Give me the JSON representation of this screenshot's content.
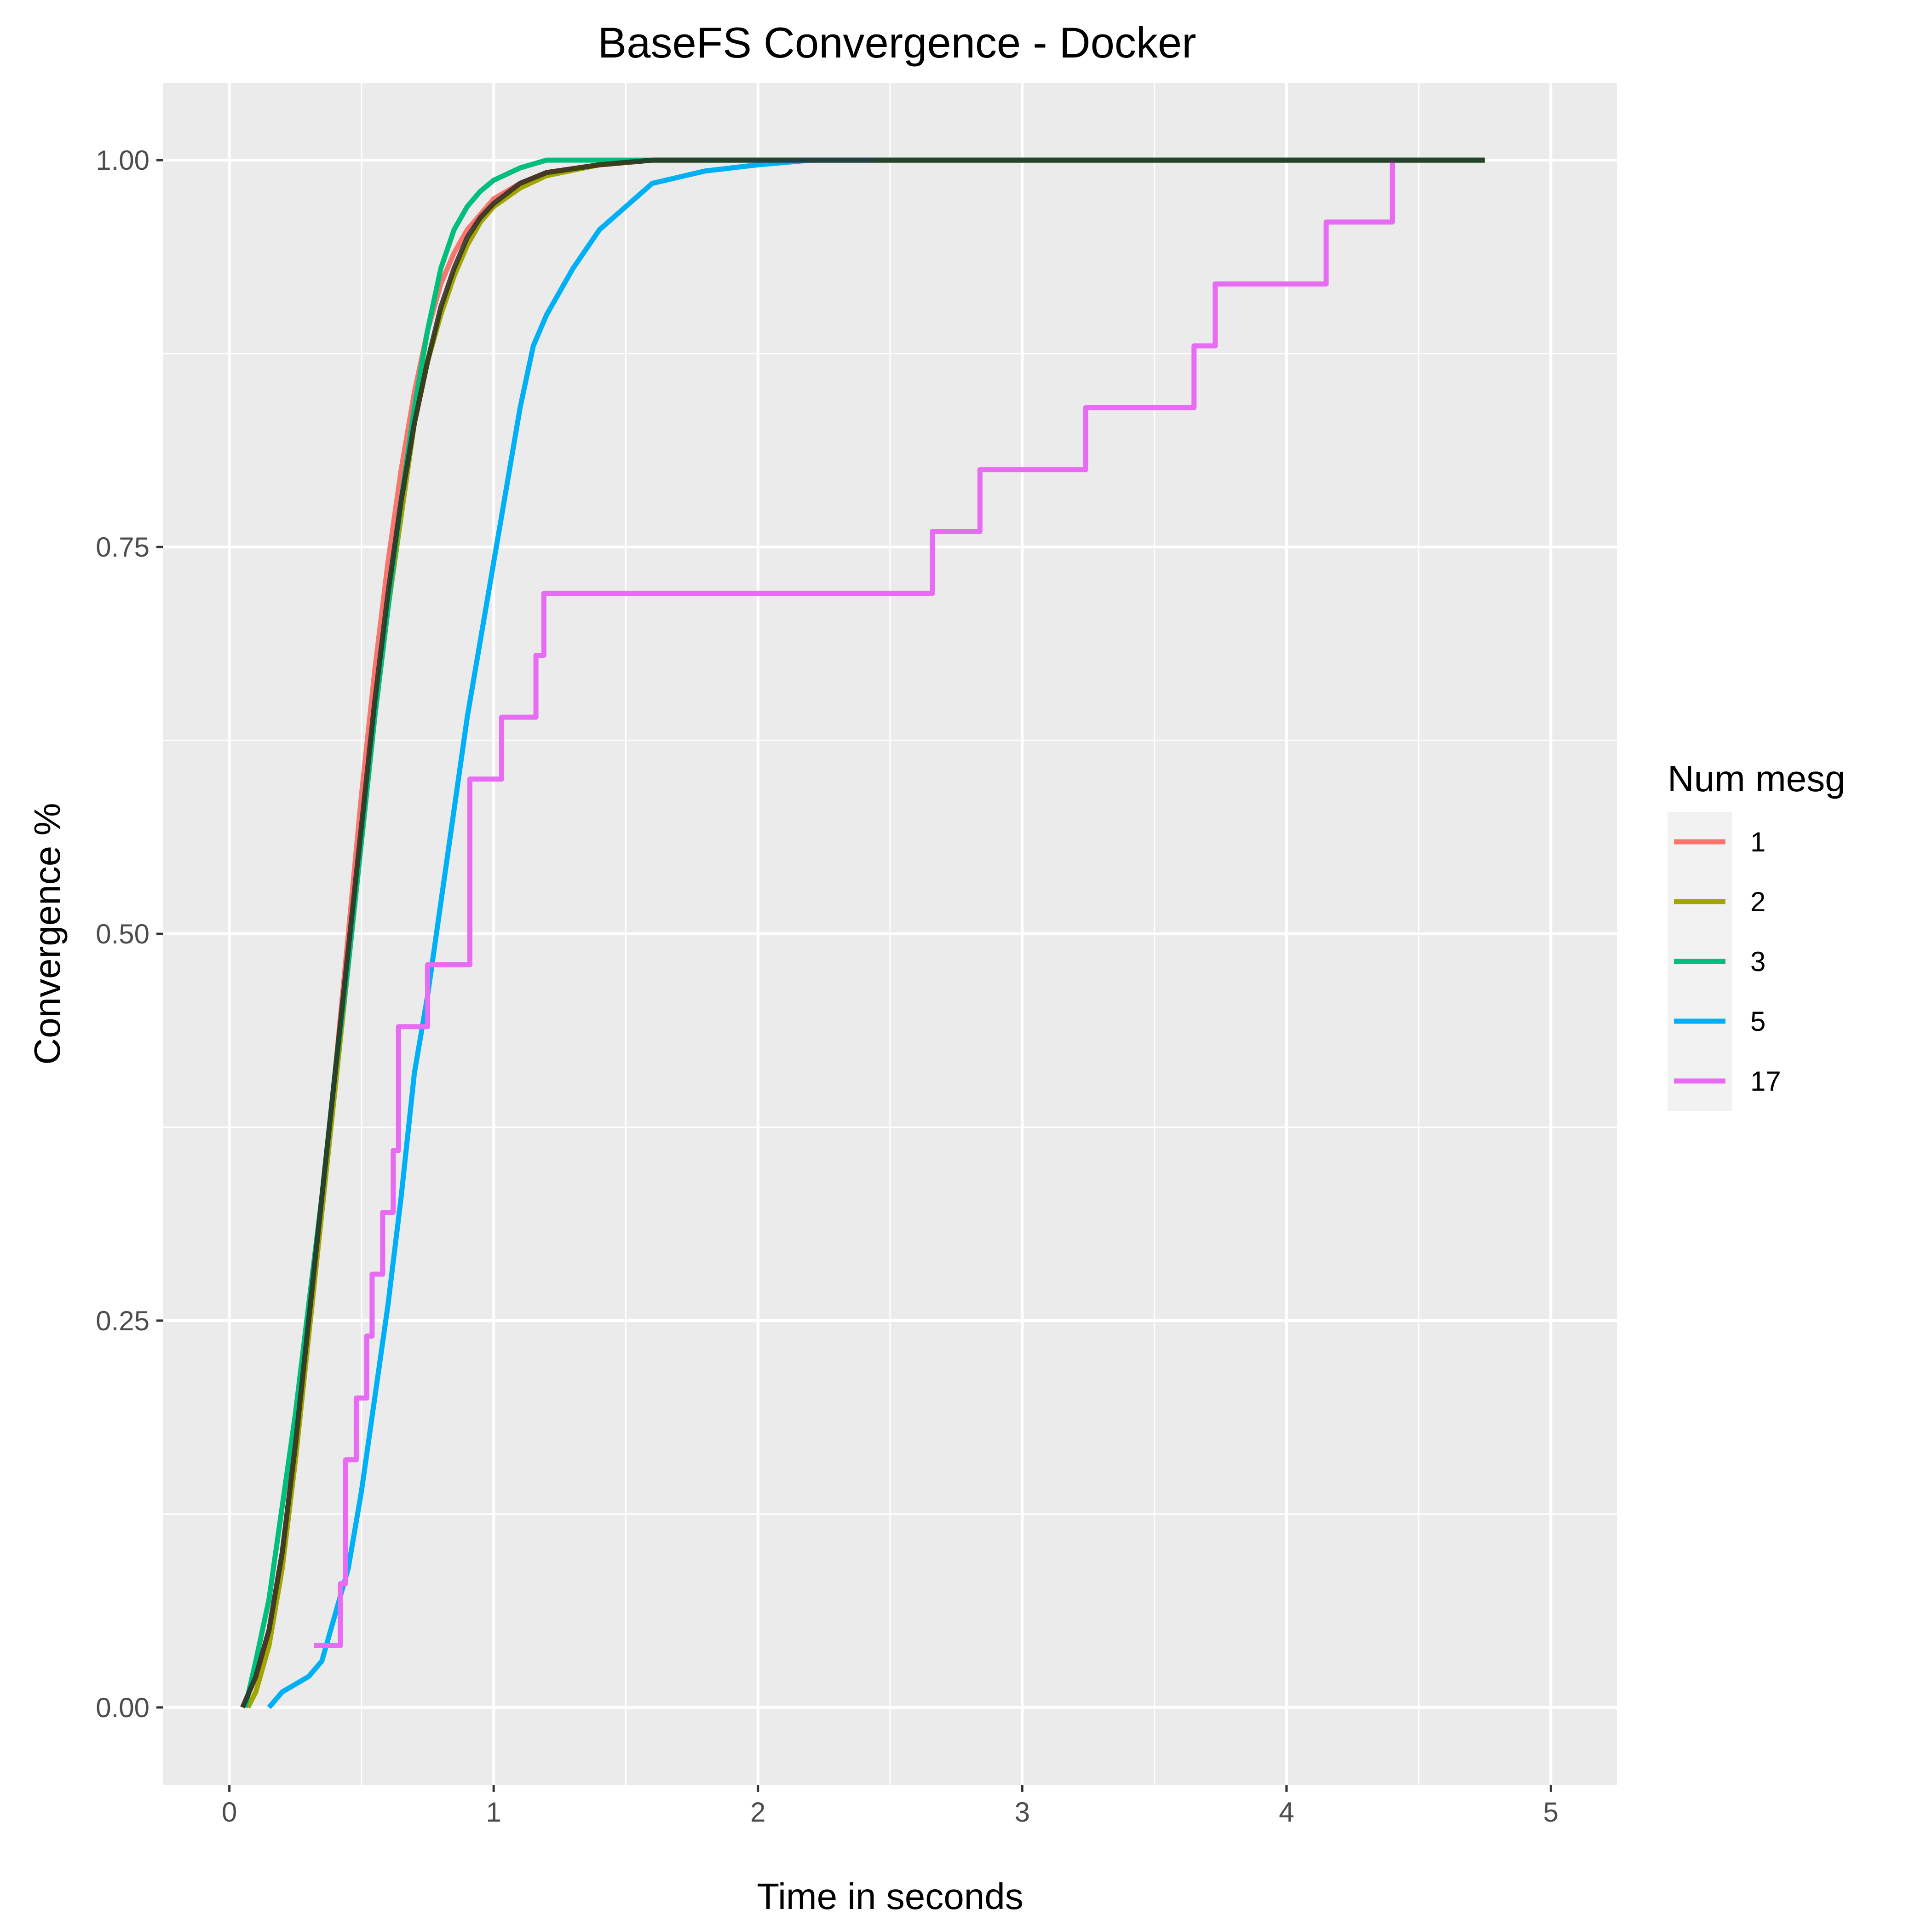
{
  "chart_data": {
    "type": "line",
    "title": "BaseFS Convergence - Docker",
    "xlabel": "Time in seconds",
    "ylabel": "Convergence %",
    "xlim": [
      -0.25,
      5.25
    ],
    "ylim": [
      -0.05,
      1.05
    ],
    "x_ticks": [
      0,
      1,
      2,
      3,
      4,
      5
    ],
    "x_tick_labels": [
      "0",
      "1",
      "2",
      "3",
      "4",
      "5"
    ],
    "y_ticks": [
      0,
      0.25,
      0.5,
      0.75,
      1.0
    ],
    "y_tick_labels": [
      "0.00",
      "0.25",
      "0.50",
      "0.75",
      "1.00"
    ],
    "grid": true,
    "legend": {
      "title": "Num mesg",
      "position": "right",
      "entries": [
        {
          "label": "1",
          "color": "#F8766D"
        },
        {
          "label": "2",
          "color": "#A3A500"
        },
        {
          "label": "3",
          "color": "#00BF7D"
        },
        {
          "label": "5",
          "color": "#00B0F6"
        },
        {
          "label": "17",
          "color": "#E76BF3"
        }
      ]
    },
    "series": [
      {
        "name": "1",
        "color": "#F8766D",
        "step": false,
        "x": [
          0.05,
          0.1,
          0.15,
          0.2,
          0.25,
          0.3,
          0.35,
          0.4,
          0.45,
          0.5,
          0.55,
          0.6,
          0.65,
          0.7,
          0.75,
          0.8,
          0.85,
          0.9,
          0.95,
          1.0,
          1.1,
          1.2,
          1.4,
          1.6,
          2.0,
          3.0,
          4.0,
          4.75
        ],
        "y": [
          0.0,
          0.02,
          0.05,
          0.1,
          0.17,
          0.25,
          0.33,
          0.41,
          0.5,
          0.59,
          0.67,
          0.74,
          0.8,
          0.85,
          0.89,
          0.92,
          0.94,
          0.955,
          0.965,
          0.975,
          0.985,
          0.992,
          0.997,
          1.0,
          1.0,
          1.0,
          1.0,
          1.0
        ]
      },
      {
        "name": "2",
        "color": "#A3A500",
        "step": false,
        "x": [
          0.07,
          0.1,
          0.15,
          0.2,
          0.25,
          0.3,
          0.35,
          0.4,
          0.45,
          0.5,
          0.55,
          0.6,
          0.65,
          0.7,
          0.75,
          0.8,
          0.85,
          0.9,
          0.95,
          1.0,
          1.1,
          1.2,
          1.4,
          1.6,
          2.0,
          3.0,
          4.0,
          4.75
        ],
        "y": [
          0.0,
          0.01,
          0.04,
          0.09,
          0.16,
          0.24,
          0.32,
          0.4,
          0.48,
          0.56,
          0.64,
          0.71,
          0.77,
          0.83,
          0.87,
          0.9,
          0.925,
          0.945,
          0.96,
          0.97,
          0.982,
          0.99,
          0.997,
          1.0,
          1.0,
          1.0,
          1.0,
          1.0
        ]
      },
      {
        "name": "3",
        "color": "#00BF7D",
        "step": false,
        "x": [
          0.06,
          0.1,
          0.15,
          0.2,
          0.25,
          0.3,
          0.35,
          0.4,
          0.45,
          0.5,
          0.55,
          0.6,
          0.65,
          0.7,
          0.75,
          0.8,
          0.85,
          0.9,
          0.95,
          1.0,
          1.1,
          1.2,
          1.3,
          1.5,
          2.0,
          3.0,
          4.0,
          4.75
        ],
        "y": [
          0.0,
          0.03,
          0.07,
          0.13,
          0.19,
          0.26,
          0.33,
          0.41,
          0.48,
          0.56,
          0.64,
          0.71,
          0.78,
          0.84,
          0.89,
          0.93,
          0.955,
          0.97,
          0.98,
          0.987,
          0.995,
          1.0,
          1.0,
          1.0,
          1.0,
          1.0,
          1.0,
          1.0
        ]
      },
      {
        "name": "5",
        "color": "#00B0F6",
        "step": false,
        "x": [
          0.15,
          0.2,
          0.25,
          0.3,
          0.35,
          0.4,
          0.45,
          0.5,
          0.55,
          0.6,
          0.65,
          0.7,
          0.75,
          0.8,
          0.85,
          0.9,
          0.95,
          1.0,
          1.05,
          1.1,
          1.15,
          1.2,
          1.3,
          1.4,
          1.5,
          1.6,
          1.8,
          2.0,
          2.2,
          2.45
        ],
        "y": [
          0.0,
          0.01,
          0.015,
          0.02,
          0.03,
          0.06,
          0.09,
          0.14,
          0.2,
          0.26,
          0.33,
          0.41,
          0.46,
          0.52,
          0.58,
          0.64,
          0.69,
          0.74,
          0.79,
          0.84,
          0.88,
          0.9,
          0.93,
          0.955,
          0.97,
          0.985,
          0.993,
          0.997,
          1.0,
          1.0
        ]
      },
      {
        "name": "17",
        "color": "#E76BF3",
        "step": true,
        "x": [
          0.32,
          0.42,
          0.44,
          0.48,
          0.52,
          0.54,
          0.58,
          0.62,
          0.64,
          0.75,
          0.91,
          1.03,
          1.16,
          1.19,
          2.66,
          2.84,
          3.24,
          3.65,
          3.73,
          4.15,
          4.4
        ],
        "y": [
          0.04,
          0.08,
          0.16,
          0.2,
          0.24,
          0.28,
          0.32,
          0.36,
          0.44,
          0.48,
          0.6,
          0.64,
          0.68,
          0.72,
          0.76,
          0.8,
          0.84,
          0.88,
          0.92,
          0.96,
          1.0
        ]
      },
      {
        "name": "",
        "color": "#2b2b1e",
        "step": false,
        "opacity": 0.85,
        "x": [
          0.05,
          0.1,
          0.15,
          0.2,
          0.25,
          0.3,
          0.35,
          0.4,
          0.45,
          0.5,
          0.55,
          0.6,
          0.65,
          0.7,
          0.75,
          0.8,
          0.85,
          0.9,
          0.95,
          1.0,
          1.1,
          1.2,
          1.4,
          1.6,
          2.0,
          3.0,
          4.0,
          4.75
        ],
        "y": [
          0.0,
          0.02,
          0.05,
          0.1,
          0.17,
          0.25,
          0.33,
          0.41,
          0.49,
          0.57,
          0.65,
          0.72,
          0.78,
          0.83,
          0.87,
          0.905,
          0.93,
          0.95,
          0.963,
          0.972,
          0.985,
          0.992,
          0.997,
          1.0,
          1.0,
          1.0,
          1.0,
          1.0
        ]
      }
    ]
  }
}
